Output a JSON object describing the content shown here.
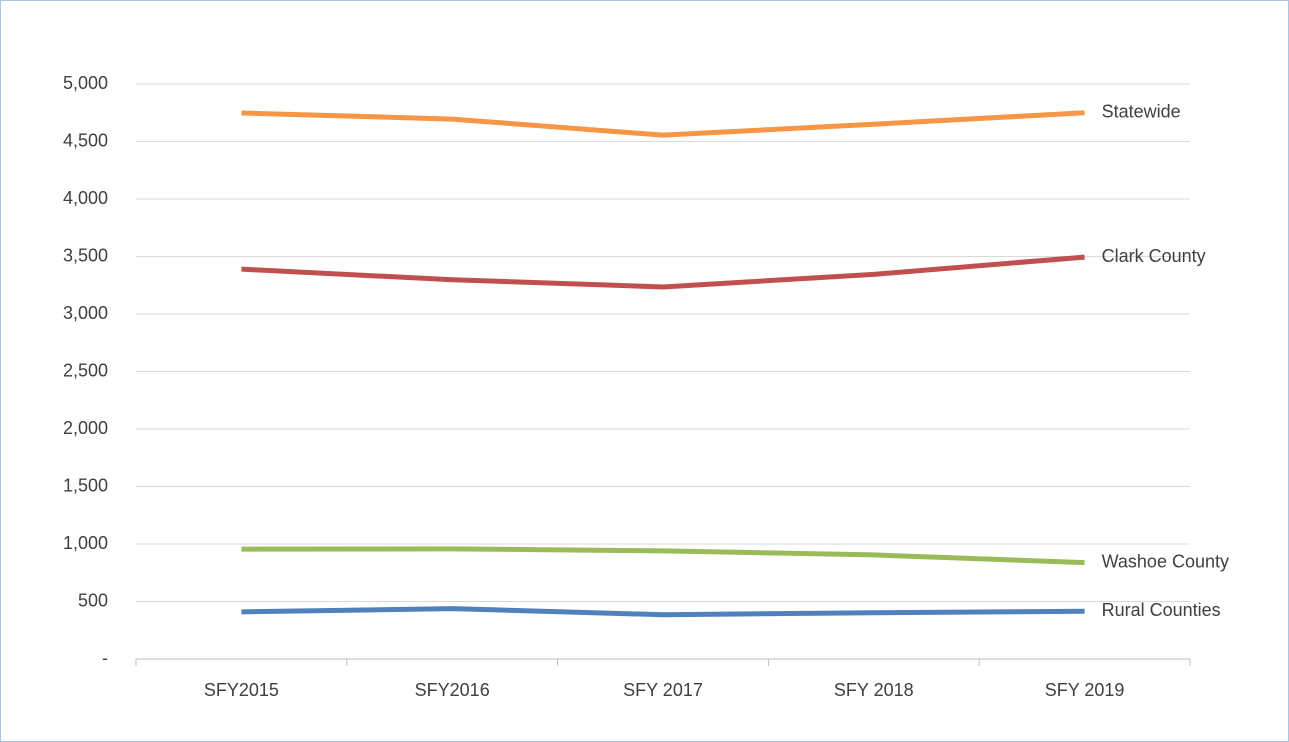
{
  "chart_data": {
    "type": "line",
    "categories": [
      "SFY2015",
      "SFY2016",
      "SFY 2017",
      "SFY 2018",
      "SFY 2019"
    ],
    "series": [
      {
        "name": "Statewide",
        "color": "#f79646",
        "values": [
          4748,
          4695,
          4555,
          4650,
          4750
        ]
      },
      {
        "name": "Clark County",
        "color": "#c0504d",
        "values": [
          3390,
          3298,
          3235,
          3345,
          3495
        ]
      },
      {
        "name": "Washoe County",
        "color": "#9bbb59",
        "values": [
          955,
          958,
          940,
          905,
          838
        ]
      },
      {
        "name": "Rural Counties",
        "color": "#4f81bd",
        "values": [
          410,
          438,
          385,
          402,
          415
        ]
      }
    ],
    "ylim": [
      0,
      5000
    ],
    "yticks": [
      {
        "value": 0,
        "label": "-"
      },
      500,
      {
        "value": 1000,
        "label": "1,000"
      },
      {
        "value": 1500,
        "label": "1,500"
      },
      {
        "value": 2000,
        "label": "2,000"
      },
      {
        "value": 2500,
        "label": "2,500"
      },
      {
        "value": 3000,
        "label": "3,000"
      },
      {
        "value": 3500,
        "label": "3,500"
      },
      {
        "value": 4000,
        "label": "4,000"
      },
      {
        "value": 4500,
        "label": "4,500"
      },
      {
        "value": 5000,
        "label": "5,000"
      }
    ],
    "grid": true
  }
}
